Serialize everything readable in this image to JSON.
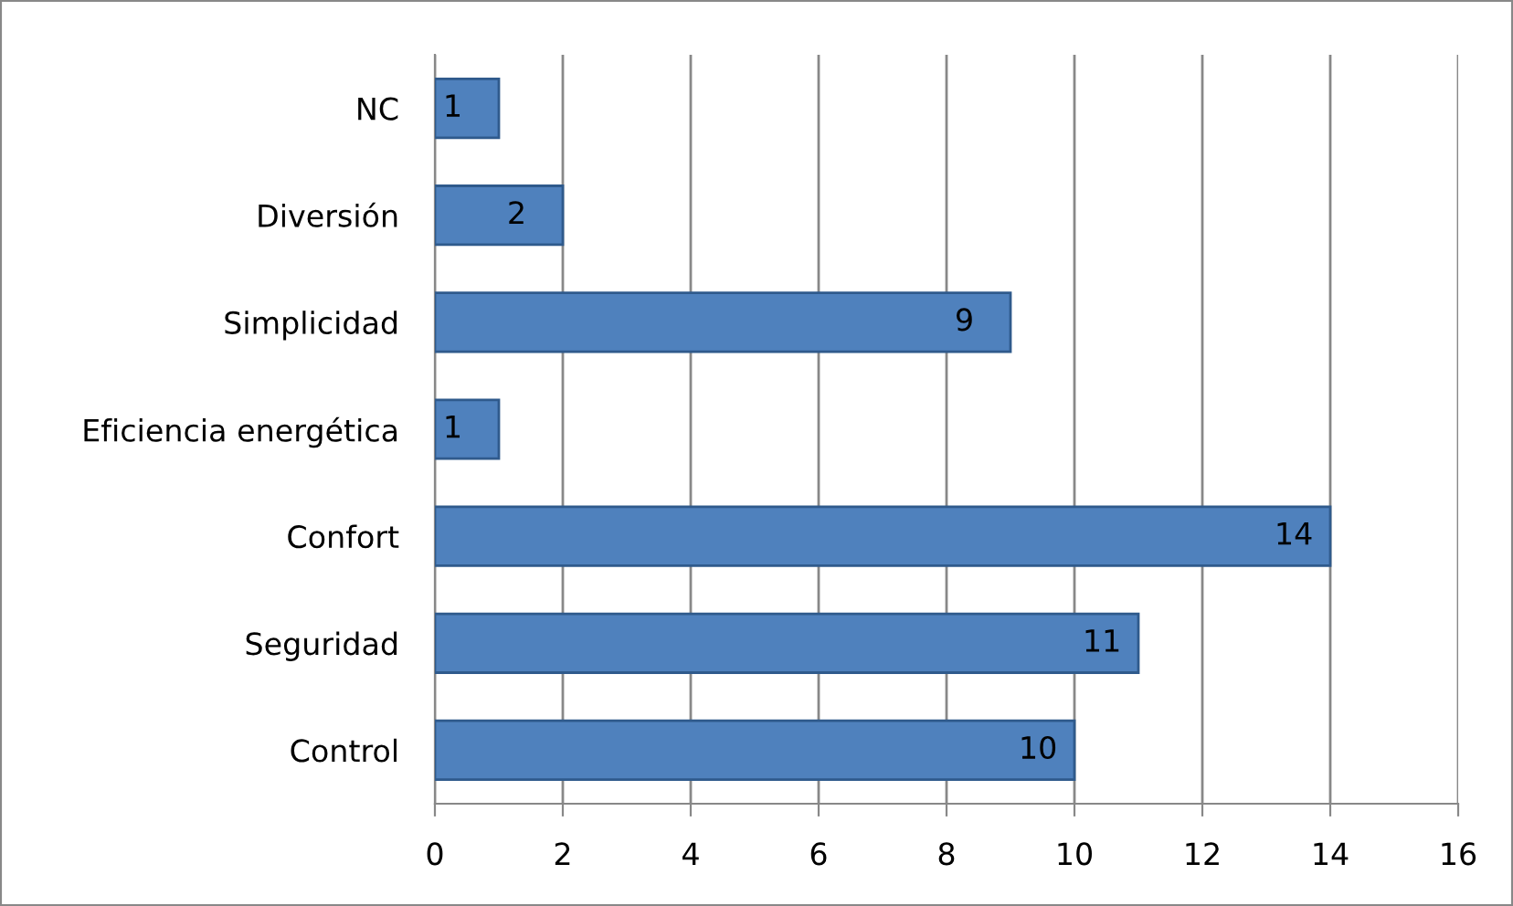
{
  "chart_data": {
    "type": "bar",
    "orientation": "horizontal",
    "categories": [
      "NC",
      "Diversión",
      "Simplicidad",
      "Eficiencia energética",
      "Confort",
      "Seguridad",
      "Control"
    ],
    "values": [
      1,
      2,
      9,
      1,
      14,
      11,
      10
    ],
    "color": "#4f81bd",
    "xlim": [
      0,
      16
    ],
    "xticks": [
      0,
      2,
      4,
      6,
      8,
      10,
      12,
      14,
      16
    ],
    "grid": "x",
    "data_labels": true
  }
}
